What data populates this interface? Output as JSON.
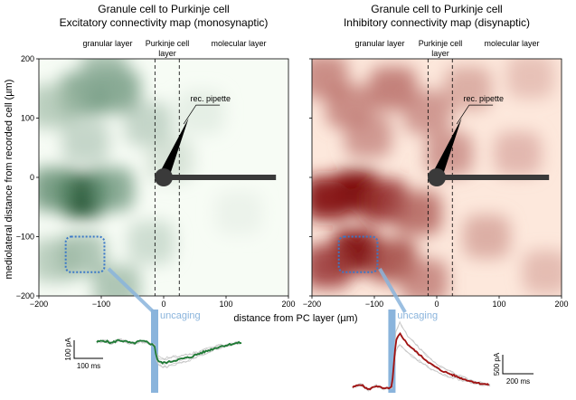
{
  "chart_data": [
    {
      "type": "heatmap",
      "id": "excitatory",
      "title": "Granule cell to Purkinje cell",
      "subtitle": "Excitatory connectivity map (monosynaptic)",
      "xlabel": "distance from PC layer (µm)",
      "ylabel": "mediolateral distance from recorded cell (µm)",
      "xlim": [
        -200,
        200
      ],
      "ylim": [
        -200,
        200
      ],
      "xticks": [
        -200,
        -100,
        0,
        100,
        200
      ],
      "yticks": [
        200,
        100,
        0,
        -100,
        -200
      ],
      "xtick_labels": [
        "−200",
        "−100",
        "0",
        "100",
        "200"
      ],
      "ytick_labels": [
        "200",
        "100",
        "0",
        "−100",
        "−200"
      ],
      "colormap": "greens",
      "color": "#1e7a34",
      "layers": [
        {
          "label": "granular layer",
          "x": -130
        },
        {
          "label": "Purkinje cell",
          "label2": "layer",
          "x": 0
        },
        {
          "label": "molecular layer",
          "x": 125
        }
      ],
      "boundaries_x": [
        -14,
        25
      ],
      "pipette_label": "rec. pipette",
      "stimulus_box": {
        "x": [
          -157,
          -95
        ],
        "y": [
          -160,
          -100
        ]
      },
      "hotspots": [
        {
          "x": -130,
          "y": -30,
          "v": 1.0
        },
        {
          "x": -175,
          "y": -20,
          "v": 0.6
        },
        {
          "x": -85,
          "y": -20,
          "v": 0.55
        },
        {
          "x": -130,
          "y": 140,
          "v": 0.55
        },
        {
          "x": -75,
          "y": 145,
          "v": 0.55
        },
        {
          "x": -95,
          "y": 175,
          "v": 0.45
        },
        {
          "x": -180,
          "y": 120,
          "v": 0.35
        },
        {
          "x": -125,
          "y": 60,
          "v": 0.3
        },
        {
          "x": -175,
          "y": -140,
          "v": 0.35
        },
        {
          "x": -130,
          "y": -130,
          "v": 0.4
        },
        {
          "x": -75,
          "y": -185,
          "v": 0.4
        },
        {
          "x": -25,
          "y": 90,
          "v": 0.3
        },
        {
          "x": -20,
          "y": -110,
          "v": 0.25
        },
        {
          "x": 10,
          "y": 30,
          "v": 0.2
        },
        {
          "x": 60,
          "y": 110,
          "v": 0.12
        },
        {
          "x": 120,
          "y": -60,
          "v": 0.08
        }
      ]
    },
    {
      "type": "heatmap",
      "id": "inhibitory",
      "title": "Granule cell to Purkinje cell",
      "subtitle": "Inhibitory connectivity map (disynaptic)",
      "xlim": [
        -200,
        200
      ],
      "ylim": [
        -200,
        200
      ],
      "xticks": [
        -200,
        -100,
        0,
        100,
        200
      ],
      "yticks": [
        200,
        100,
        0,
        -100,
        -200
      ],
      "xtick_labels": [
        "−200",
        "−100",
        "0",
        "100",
        "200"
      ],
      "ytick_labels": [
        "200",
        "100",
        "0",
        "−100",
        "−200"
      ],
      "colormap": "reds",
      "color": "#8e0a0a",
      "layers": [
        {
          "label": "granular layer",
          "x": -130
        },
        {
          "label": "Purkinje cell",
          "label2": "layer",
          "x": 0
        },
        {
          "label": "molecular layer",
          "x": 125
        }
      ],
      "boundaries_x": [
        -14,
        25
      ],
      "pipette_label": "rec. pipette",
      "stimulus_box": {
        "x": [
          -157,
          -95
        ],
        "y": [
          -160,
          -100
        ]
      },
      "hotspots": [
        {
          "x": -130,
          "y": -25,
          "v": 1.0
        },
        {
          "x": -175,
          "y": -35,
          "v": 0.9
        },
        {
          "x": -85,
          "y": -40,
          "v": 0.8
        },
        {
          "x": -130,
          "y": -125,
          "v": 0.95
        },
        {
          "x": -175,
          "y": -150,
          "v": 0.75
        },
        {
          "x": -70,
          "y": -140,
          "v": 0.7
        },
        {
          "x": -30,
          "y": -60,
          "v": 0.6
        },
        {
          "x": -140,
          "y": 120,
          "v": 0.5
        },
        {
          "x": -70,
          "y": 150,
          "v": 0.55
        },
        {
          "x": -180,
          "y": 170,
          "v": 0.5
        },
        {
          "x": -110,
          "y": 70,
          "v": 0.45
        },
        {
          "x": -15,
          "y": 110,
          "v": 0.45
        },
        {
          "x": 50,
          "y": 150,
          "v": 0.35
        },
        {
          "x": 20,
          "y": 40,
          "v": 0.45
        },
        {
          "x": 80,
          "y": -100,
          "v": 0.35
        },
        {
          "x": 130,
          "y": 40,
          "v": 0.3
        },
        {
          "x": 175,
          "y": -160,
          "v": 0.28
        },
        {
          "x": 150,
          "y": 170,
          "v": 0.25
        },
        {
          "x": -20,
          "y": -175,
          "v": 0.5
        }
      ]
    },
    {
      "type": "line",
      "id": "epsc-trace",
      "color": "#1e7a34",
      "stim_label": "uncaging",
      "scale_y_label": "100 pA",
      "scale_x_label": "100 ms",
      "t_ms": [
        -160,
        -140,
        -120,
        -100,
        -80,
        -60,
        -40,
        -20,
        0,
        5,
        10,
        20,
        40,
        60,
        80,
        100,
        120,
        140,
        160,
        180,
        200,
        220,
        240
      ],
      "current_pA": [
        0,
        3,
        -2,
        4,
        1,
        -3,
        2,
        0,
        -8,
        -30,
        -38,
        -42,
        -40,
        -36,
        -33,
        -30,
        -24,
        -19,
        -14,
        -9,
        -6,
        -3,
        -1
      ]
    },
    {
      "type": "line",
      "id": "ipsc-trace",
      "color": "#a01010",
      "stim_label": "uncaging",
      "scale_y_label": "500 pA",
      "scale_x_label": "200 ms",
      "t_ms": [
        -200,
        -160,
        -120,
        -80,
        -40,
        0,
        20,
        40,
        80,
        120,
        160,
        200,
        250,
        300,
        350,
        400,
        450,
        500
      ],
      "current_pA": [
        0,
        40,
        -30,
        20,
        -20,
        0,
        600,
        700,
        560,
        470,
        380,
        300,
        220,
        170,
        120,
        80,
        50,
        30
      ]
    }
  ]
}
